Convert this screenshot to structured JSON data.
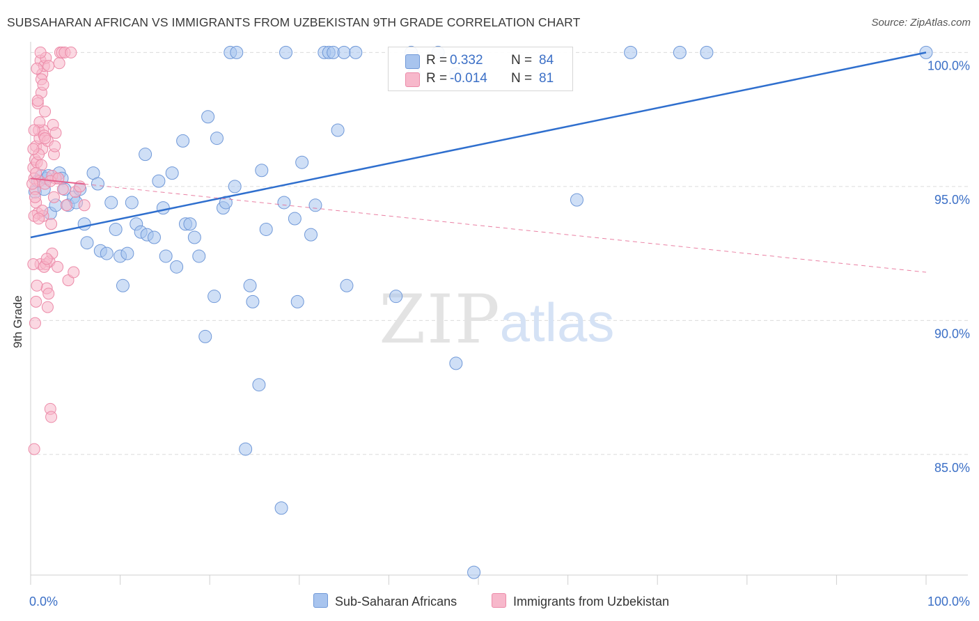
{
  "header": {
    "title": "SUBSAHARAN AFRICAN VS IMMIGRANTS FROM UZBEKISTAN 9TH GRADE CORRELATION CHART",
    "source": "Source: ZipAtlas.com"
  },
  "watermark": {
    "zip": "ZIP",
    "atlas": "atlas"
  },
  "legend": {
    "rows": [
      {
        "r_key": "R =",
        "r_value": "0.332",
        "n_key": "N =",
        "n_value": "84",
        "color": "#a8c4ee",
        "stroke": "#6f98d8"
      },
      {
        "r_key": "R =",
        "r_value": "-0.014",
        "n_key": "N =",
        "n_value": "81",
        "color": "#f7b8cb",
        "stroke": "#ec8aa8"
      }
    ],
    "bottom": [
      "Sub-Saharan Africans",
      "Immigrants from Uzbekistan"
    ]
  },
  "chart_data": {
    "type": "scatter",
    "title": "SUBSAHARAN AFRICAN VS IMMIGRANTS FROM UZBEKISTAN 9TH GRADE CORRELATION CHART",
    "ylabel": "9th Grade",
    "xlabel": "",
    "x_tick_labels": [
      "0.0%",
      "100.0%"
    ],
    "y_tick_labels": [
      "100.0%",
      "95.0%",
      "90.0%",
      "85.0%"
    ],
    "y_ticks": [
      100,
      95,
      90,
      85
    ],
    "xlim": [
      0,
      100
    ],
    "ylim": [
      80.5,
      100.4
    ],
    "grid": true,
    "legend_position": "top-center",
    "series": [
      {
        "name": "Sub-Saharan Africans",
        "color": "#a8c4ee",
        "stroke": "#6f98d8",
        "trend": {
          "x": [
            0,
            100
          ],
          "y": [
            93.1,
            100
          ],
          "color": "#2f6fce",
          "style": "solid"
        },
        "points": [
          [
            0.5,
            94.8
          ],
          [
            0.8,
            95.2
          ],
          [
            1.2,
            95.4
          ],
          [
            1.8,
            95.3
          ],
          [
            2.2,
            94.0
          ],
          [
            2.8,
            94.3
          ],
          [
            3.2,
            95.5
          ],
          [
            3.8,
            94.9
          ],
          [
            4.2,
            94.3
          ],
          [
            4.8,
            94.6
          ],
          [
            5.1,
            94.4
          ],
          [
            5.5,
            94.9
          ],
          [
            6.0,
            93.6
          ],
          [
            6.3,
            92.9
          ],
          [
            7.0,
            95.5
          ],
          [
            7.5,
            95.1
          ],
          [
            7.8,
            92.6
          ],
          [
            8.5,
            92.5
          ],
          [
            9.0,
            94.4
          ],
          [
            9.5,
            93.4
          ],
          [
            10.0,
            92.4
          ],
          [
            10.3,
            91.3
          ],
          [
            10.8,
            92.5
          ],
          [
            11.3,
            94.4
          ],
          [
            11.8,
            93.6
          ],
          [
            12.3,
            93.3
          ],
          [
            12.8,
            96.2
          ],
          [
            13.0,
            93.2
          ],
          [
            13.8,
            93.1
          ],
          [
            14.3,
            95.2
          ],
          [
            14.8,
            94.2
          ],
          [
            15.1,
            92.4
          ],
          [
            15.8,
            95.5
          ],
          [
            16.3,
            92.0
          ],
          [
            17.0,
            96.7
          ],
          [
            17.3,
            93.6
          ],
          [
            17.8,
            93.6
          ],
          [
            18.3,
            93.1
          ],
          [
            18.8,
            92.4
          ],
          [
            19.5,
            89.4
          ],
          [
            19.8,
            97.6
          ],
          [
            20.5,
            90.9
          ],
          [
            20.8,
            96.8
          ],
          [
            21.5,
            94.2
          ],
          [
            21.8,
            94.4
          ],
          [
            22.8,
            95.0
          ],
          [
            22.3,
            100
          ],
          [
            23.0,
            100
          ],
          [
            24.0,
            85.2
          ],
          [
            24.5,
            91.3
          ],
          [
            24.8,
            90.7
          ],
          [
            25.5,
            87.6
          ],
          [
            25.8,
            95.6
          ],
          [
            26.3,
            93.4
          ],
          [
            28.0,
            83.0
          ],
          [
            28.3,
            94.4
          ],
          [
            28.5,
            100
          ],
          [
            29.5,
            93.8
          ],
          [
            29.8,
            90.7
          ],
          [
            30.3,
            95.9
          ],
          [
            31.3,
            93.2
          ],
          [
            31.8,
            94.3
          ],
          [
            32.8,
            100
          ],
          [
            33.3,
            100
          ],
          [
            33.8,
            100
          ],
          [
            34.3,
            97.1
          ],
          [
            35.0,
            100
          ],
          [
            35.3,
            91.3
          ],
          [
            36.3,
            100
          ],
          [
            40.8,
            90.9
          ],
          [
            42.5,
            100
          ],
          [
            42.8,
            99.2
          ],
          [
            45.5,
            100
          ],
          [
            47.5,
            99.2
          ],
          [
            47.5,
            88.4
          ],
          [
            49.5,
            80.6
          ],
          [
            61.0,
            94.5
          ],
          [
            67.0,
            100
          ],
          [
            72.5,
            100
          ],
          [
            75.5,
            100
          ],
          [
            100,
            100
          ],
          [
            3.5,
            95.3
          ],
          [
            2.0,
            95.4
          ],
          [
            1.5,
            94.9
          ]
        ]
      },
      {
        "name": "Immigrants from Uzbekistan",
        "color": "#f7b8cb",
        "stroke": "#ec8aa8",
        "trend": {
          "x": [
            0,
            100
          ],
          "y": [
            95.3,
            91.8
          ],
          "solid_until": 6,
          "color": "#e5608c",
          "style": "solid-then-dashed"
        },
        "points": [
          [
            0.3,
            95.7
          ],
          [
            0.4,
            95.3
          ],
          [
            0.5,
            94.9
          ],
          [
            0.5,
            96.0
          ],
          [
            0.6,
            96.5
          ],
          [
            0.6,
            94.4
          ],
          [
            0.7,
            95.9
          ],
          [
            0.8,
            98.1
          ],
          [
            0.8,
            94.0
          ],
          [
            0.9,
            97.1
          ],
          [
            1.0,
            96.8
          ],
          [
            1.0,
            95.2
          ],
          [
            1.1,
            99.7
          ],
          [
            1.1,
            92.1
          ],
          [
            1.2,
            98.5
          ],
          [
            1.2,
            95.8
          ],
          [
            1.3,
            99.2
          ],
          [
            1.3,
            96.4
          ],
          [
            1.4,
            97.1
          ],
          [
            1.4,
            93.9
          ],
          [
            1.5,
            99.5
          ],
          [
            1.5,
            96.9
          ],
          [
            1.6,
            97.8
          ],
          [
            1.6,
            95.1
          ],
          [
            1.7,
            99.8
          ],
          [
            1.7,
            92.1
          ],
          [
            1.8,
            91.2
          ],
          [
            1.9,
            96.7
          ],
          [
            1.9,
            90.5
          ],
          [
            2.0,
            91.0
          ],
          [
            2.1,
            92.2
          ],
          [
            2.2,
            86.7
          ],
          [
            2.3,
            86.4
          ],
          [
            2.3,
            93.6
          ],
          [
            2.4,
            92.5
          ],
          [
            2.5,
            97.3
          ],
          [
            2.6,
            96.2
          ],
          [
            2.7,
            96.5
          ],
          [
            2.8,
            95.3
          ],
          [
            3.0,
            92.0
          ],
          [
            3.2,
            99.6
          ],
          [
            3.3,
            100
          ],
          [
            3.5,
            100
          ],
          [
            3.8,
            100
          ],
          [
            4.0,
            94.3
          ],
          [
            4.2,
            91.5
          ],
          [
            4.5,
            100
          ],
          [
            4.8,
            91.8
          ],
          [
            5.0,
            94.8
          ],
          [
            5.5,
            95.0
          ],
          [
            6.0,
            94.3
          ],
          [
            0.4,
            85.2
          ],
          [
            0.5,
            89.9
          ],
          [
            0.6,
            90.7
          ],
          [
            0.7,
            91.3
          ],
          [
            0.3,
            92.1
          ],
          [
            0.4,
            93.9
          ],
          [
            0.5,
            94.6
          ],
          [
            0.6,
            95.5
          ],
          [
            0.9,
            96.2
          ],
          [
            1.0,
            97.4
          ],
          [
            1.2,
            99.0
          ],
          [
            1.4,
            98.8
          ],
          [
            1.6,
            96.8
          ],
          [
            2.0,
            99.5
          ],
          [
            2.4,
            95.4
          ],
          [
            2.8,
            97.0
          ],
          [
            0.3,
            96.4
          ],
          [
            0.4,
            97.1
          ],
          [
            0.7,
            99.4
          ],
          [
            0.8,
            98.2
          ],
          [
            1.1,
            100
          ],
          [
            1.3,
            94.1
          ],
          [
            1.5,
            92.0
          ],
          [
            1.8,
            92.3
          ],
          [
            2.2,
            95.2
          ],
          [
            2.6,
            94.6
          ],
          [
            3.1,
            95.3
          ],
          [
            3.6,
            94.9
          ],
          [
            0.2,
            95.1
          ],
          [
            0.9,
            93.8
          ]
        ]
      }
    ]
  }
}
